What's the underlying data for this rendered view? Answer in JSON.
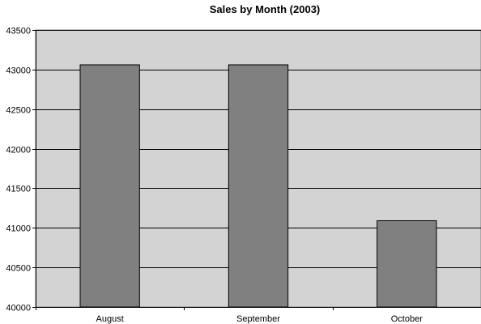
{
  "chart_data": {
    "type": "bar",
    "title": "Sales by Month (2003)",
    "categories": [
      "August",
      "September",
      "October"
    ],
    "values": [
      43060,
      43060,
      41090
    ],
    "ylim": [
      40000,
      43500
    ],
    "yticks": [
      40000,
      40500,
      41000,
      41500,
      42000,
      42500,
      43000,
      43500
    ],
    "xlabel": "",
    "ylabel": "",
    "grid": true,
    "legend": "none",
    "colors": {
      "plot_background": "#d3d3d3",
      "bar": "#808080",
      "bar_outline": "#000000",
      "grid": "#000000"
    }
  }
}
